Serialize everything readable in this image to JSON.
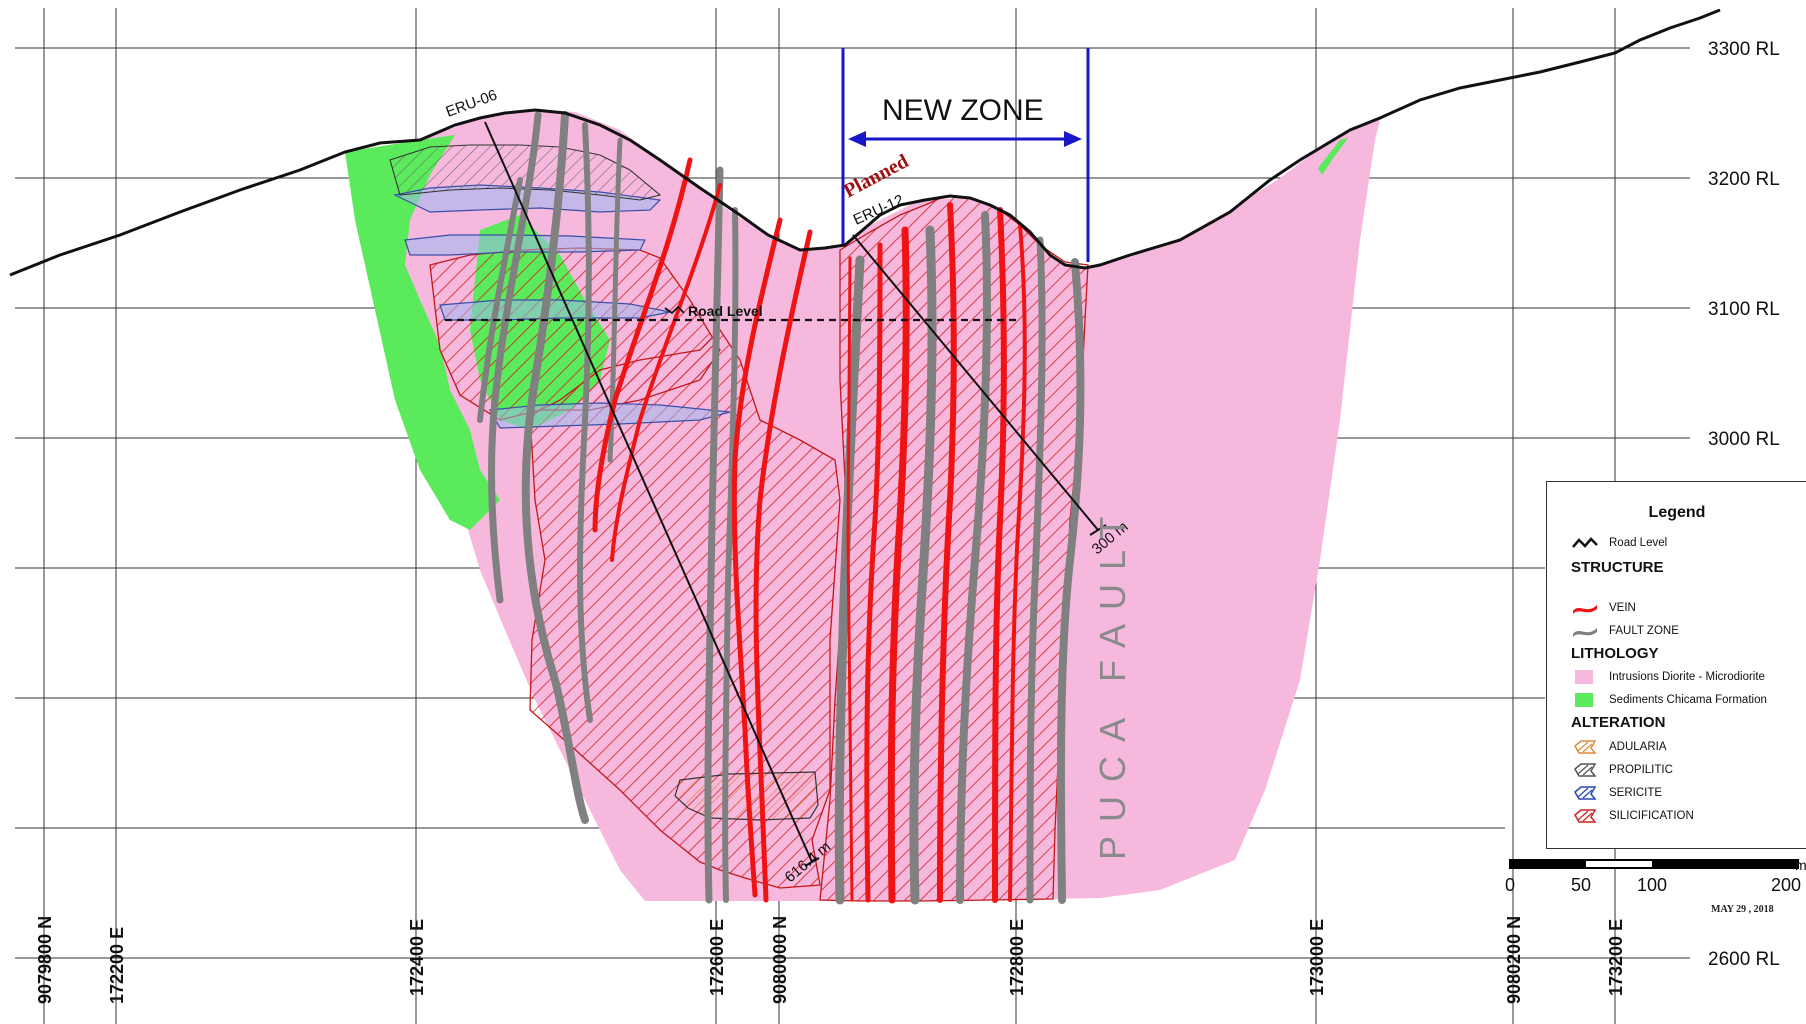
{
  "elevation_labels": [
    "3300 RL",
    "3200 RL",
    "3100 RL",
    "3000 RL",
    "2600 RL"
  ],
  "coordinate_labels": [
    "9079800 N",
    "172200 E",
    "172400 E",
    "172600 E",
    "9080000 N",
    "172800 E",
    "173000 E",
    "9080200 N",
    "173200 E"
  ],
  "new_zone_label": "NEW ZONE",
  "planned_label": "Planned",
  "drill_holes": [
    {
      "name": "ERU-06",
      "depth_label": "616.4 m"
    },
    {
      "name": "ERU-12",
      "depth_label": "300 m"
    }
  ],
  "road_level_label": "Road Level",
  "fault_label": "PUCA FAULT",
  "legend": {
    "title": "Legend",
    "road_level": "Road Level",
    "structure_heading": "STRUCTURE",
    "structure_items": [
      "VEIN",
      "FAULT ZONE"
    ],
    "lithology_heading": "LITHOLOGY",
    "lithology_items": [
      "Intrusions Diorite - Microdiorite",
      "Sediments Chicama Formation"
    ],
    "alteration_heading": "ALTERATION",
    "alteration_items": [
      "ADULARIA",
      "PROPILITIC",
      "SERICITE",
      "SILICIFICATION"
    ]
  },
  "scale_bar": {
    "ticks": [
      "0",
      "50",
      "100",
      "200"
    ],
    "unit": "m"
  },
  "date_label": "MAY 29 , 2018",
  "colors": {
    "intrusion_pink": "#f7b8de",
    "sediment_green": "#5bea5b",
    "vein_red": "#ef1414",
    "fault_gray": "#808080",
    "silicification_hatch": "#d42020",
    "sericite_blue": "#7aa8e8",
    "new_zone_blue": "#1717c8"
  }
}
